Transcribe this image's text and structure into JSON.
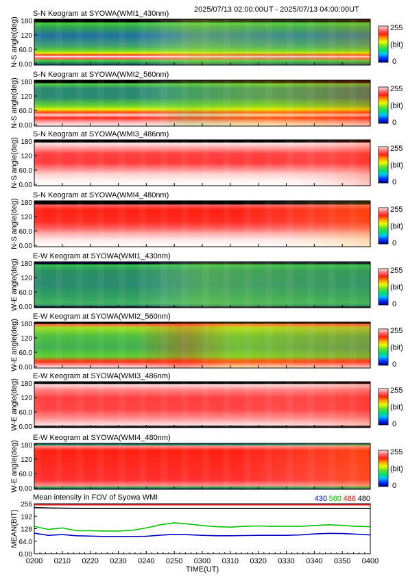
{
  "header": {
    "time_range": "2025/07/13 02:00:00UT - 2025/07/13 04:00:00UT"
  },
  "colorbar": {
    "max_label": "255",
    "unit_label": "(bit)",
    "min_label": "0",
    "stops": [
      "#000080",
      "#0030ff",
      "#00c0ff",
      "#00e070",
      "#60e030",
      "#e8ff00",
      "#ffa000",
      "#ff2010",
      "#ff7070",
      "#ffe8e8"
    ]
  },
  "panels": [
    {
      "title": "S-N Keogram at SYOWA(WMI1_430nm)",
      "ylabel": "N-S angle(deg)",
      "yticks": [
        "180",
        "120",
        "60.0",
        "0.00"
      ],
      "style": "sn430"
    },
    {
      "title": "S-N Keogram at SYOWA(WMI2_560nm)",
      "ylabel": "N-S angle(deg)",
      "yticks": [
        "180",
        "120",
        "60.0",
        "0.00"
      ],
      "style": "sn560"
    },
    {
      "title": "S-N Keogram at SYOWA(WMI3_486nm)",
      "ylabel": "N-S angle(deg)",
      "yticks": [
        "180",
        "120",
        "60.0",
        "0.00"
      ],
      "style": "sn486"
    },
    {
      "title": "S-N Keogram at SYOWA(WMI4_480nm)",
      "ylabel": "N-S angle(deg)",
      "yticks": [
        "180",
        "120",
        "60.0",
        "0.00"
      ],
      "style": "sn480"
    },
    {
      "title": "E-W Keogram at SYOWA(WMI1_430nm)",
      "ylabel": "W-E angle(deg)",
      "yticks": [
        "180",
        "120",
        "60.0",
        "0.00"
      ],
      "style": "ew430"
    },
    {
      "title": "E-W Keogram at SYOWA(WMI2_560nm)",
      "ylabel": "W-E angle(deg)",
      "yticks": [
        "180",
        "120",
        "60.0",
        "0.00"
      ],
      "style": "ew560"
    },
    {
      "title": "E-W Keogram at SYOWA(WMI3_486nm)",
      "ylabel": "W-E angle(deg)",
      "yticks": [
        "180",
        "120",
        "60.0",
        "0.00"
      ],
      "style": "ew486"
    },
    {
      "title": "E-W Keogram at SYOWA(WMI4_480nm)",
      "ylabel": "W-E angle(deg)",
      "yticks": [
        "180",
        "120",
        "60.0",
        "0.00"
      ],
      "style": "ew480"
    }
  ],
  "chart_data": {
    "type": "line",
    "title": "Mean intensity in FOV of Syowa WMI",
    "xlabel": "TIME(UT)",
    "ylabel": "MEAN(BIT)",
    "categories": [
      "0200",
      "0210",
      "0220",
      "0230",
      "0240",
      "0250",
      "0300",
      "0310",
      "0320",
      "0330",
      "0340",
      "0350",
      "0400"
    ],
    "x": [
      0,
      5,
      10,
      15,
      20,
      25,
      30,
      35,
      40,
      45,
      50,
      55,
      60,
      65,
      70,
      75,
      80,
      85,
      90,
      95,
      100,
      105,
      110,
      115,
      120
    ],
    "xlim": [
      0,
      120
    ],
    "ylim": [
      0,
      256
    ],
    "yticks": [
      "256",
      "192",
      "128",
      "64.0",
      "0.00"
    ],
    "ytick_values": [
      256,
      192,
      128,
      64,
      0
    ],
    "legend_position": "top-right",
    "series": [
      {
        "name": "430",
        "color": "#0000c0",
        "values": [
          105,
          94,
          98,
          92,
          90,
          88,
          88,
          88,
          89,
          95,
          99,
          97,
          94,
          92,
          92,
          93,
          94,
          94,
          94,
          96,
          101,
          104,
          103,
          100,
          96
        ]
      },
      {
        "name": "560",
        "color": "#00c000",
        "values": [
          140,
          124,
          132,
          118,
          118,
          116,
          116,
          120,
          132,
          148,
          158,
          152,
          144,
          138,
          136,
          140,
          142,
          140,
          140,
          140,
          144,
          148,
          145,
          140,
          138
        ]
      },
      {
        "name": "486",
        "color": "#e00000",
        "values": [
          250,
          250,
          250,
          250,
          250,
          250,
          250,
          250,
          250,
          250,
          250,
          250,
          250,
          250,
          250,
          250,
          250,
          250,
          250,
          250,
          250,
          250,
          250,
          250,
          250
        ]
      },
      {
        "name": "480",
        "color": "#000000",
        "values": [
          236,
          234,
          233,
          232,
          232,
          232,
          232,
          232,
          232,
          232,
          232,
          232,
          232,
          232,
          232,
          232,
          232,
          232,
          232,
          232,
          232,
          232,
          232,
          232,
          232
        ]
      }
    ]
  }
}
